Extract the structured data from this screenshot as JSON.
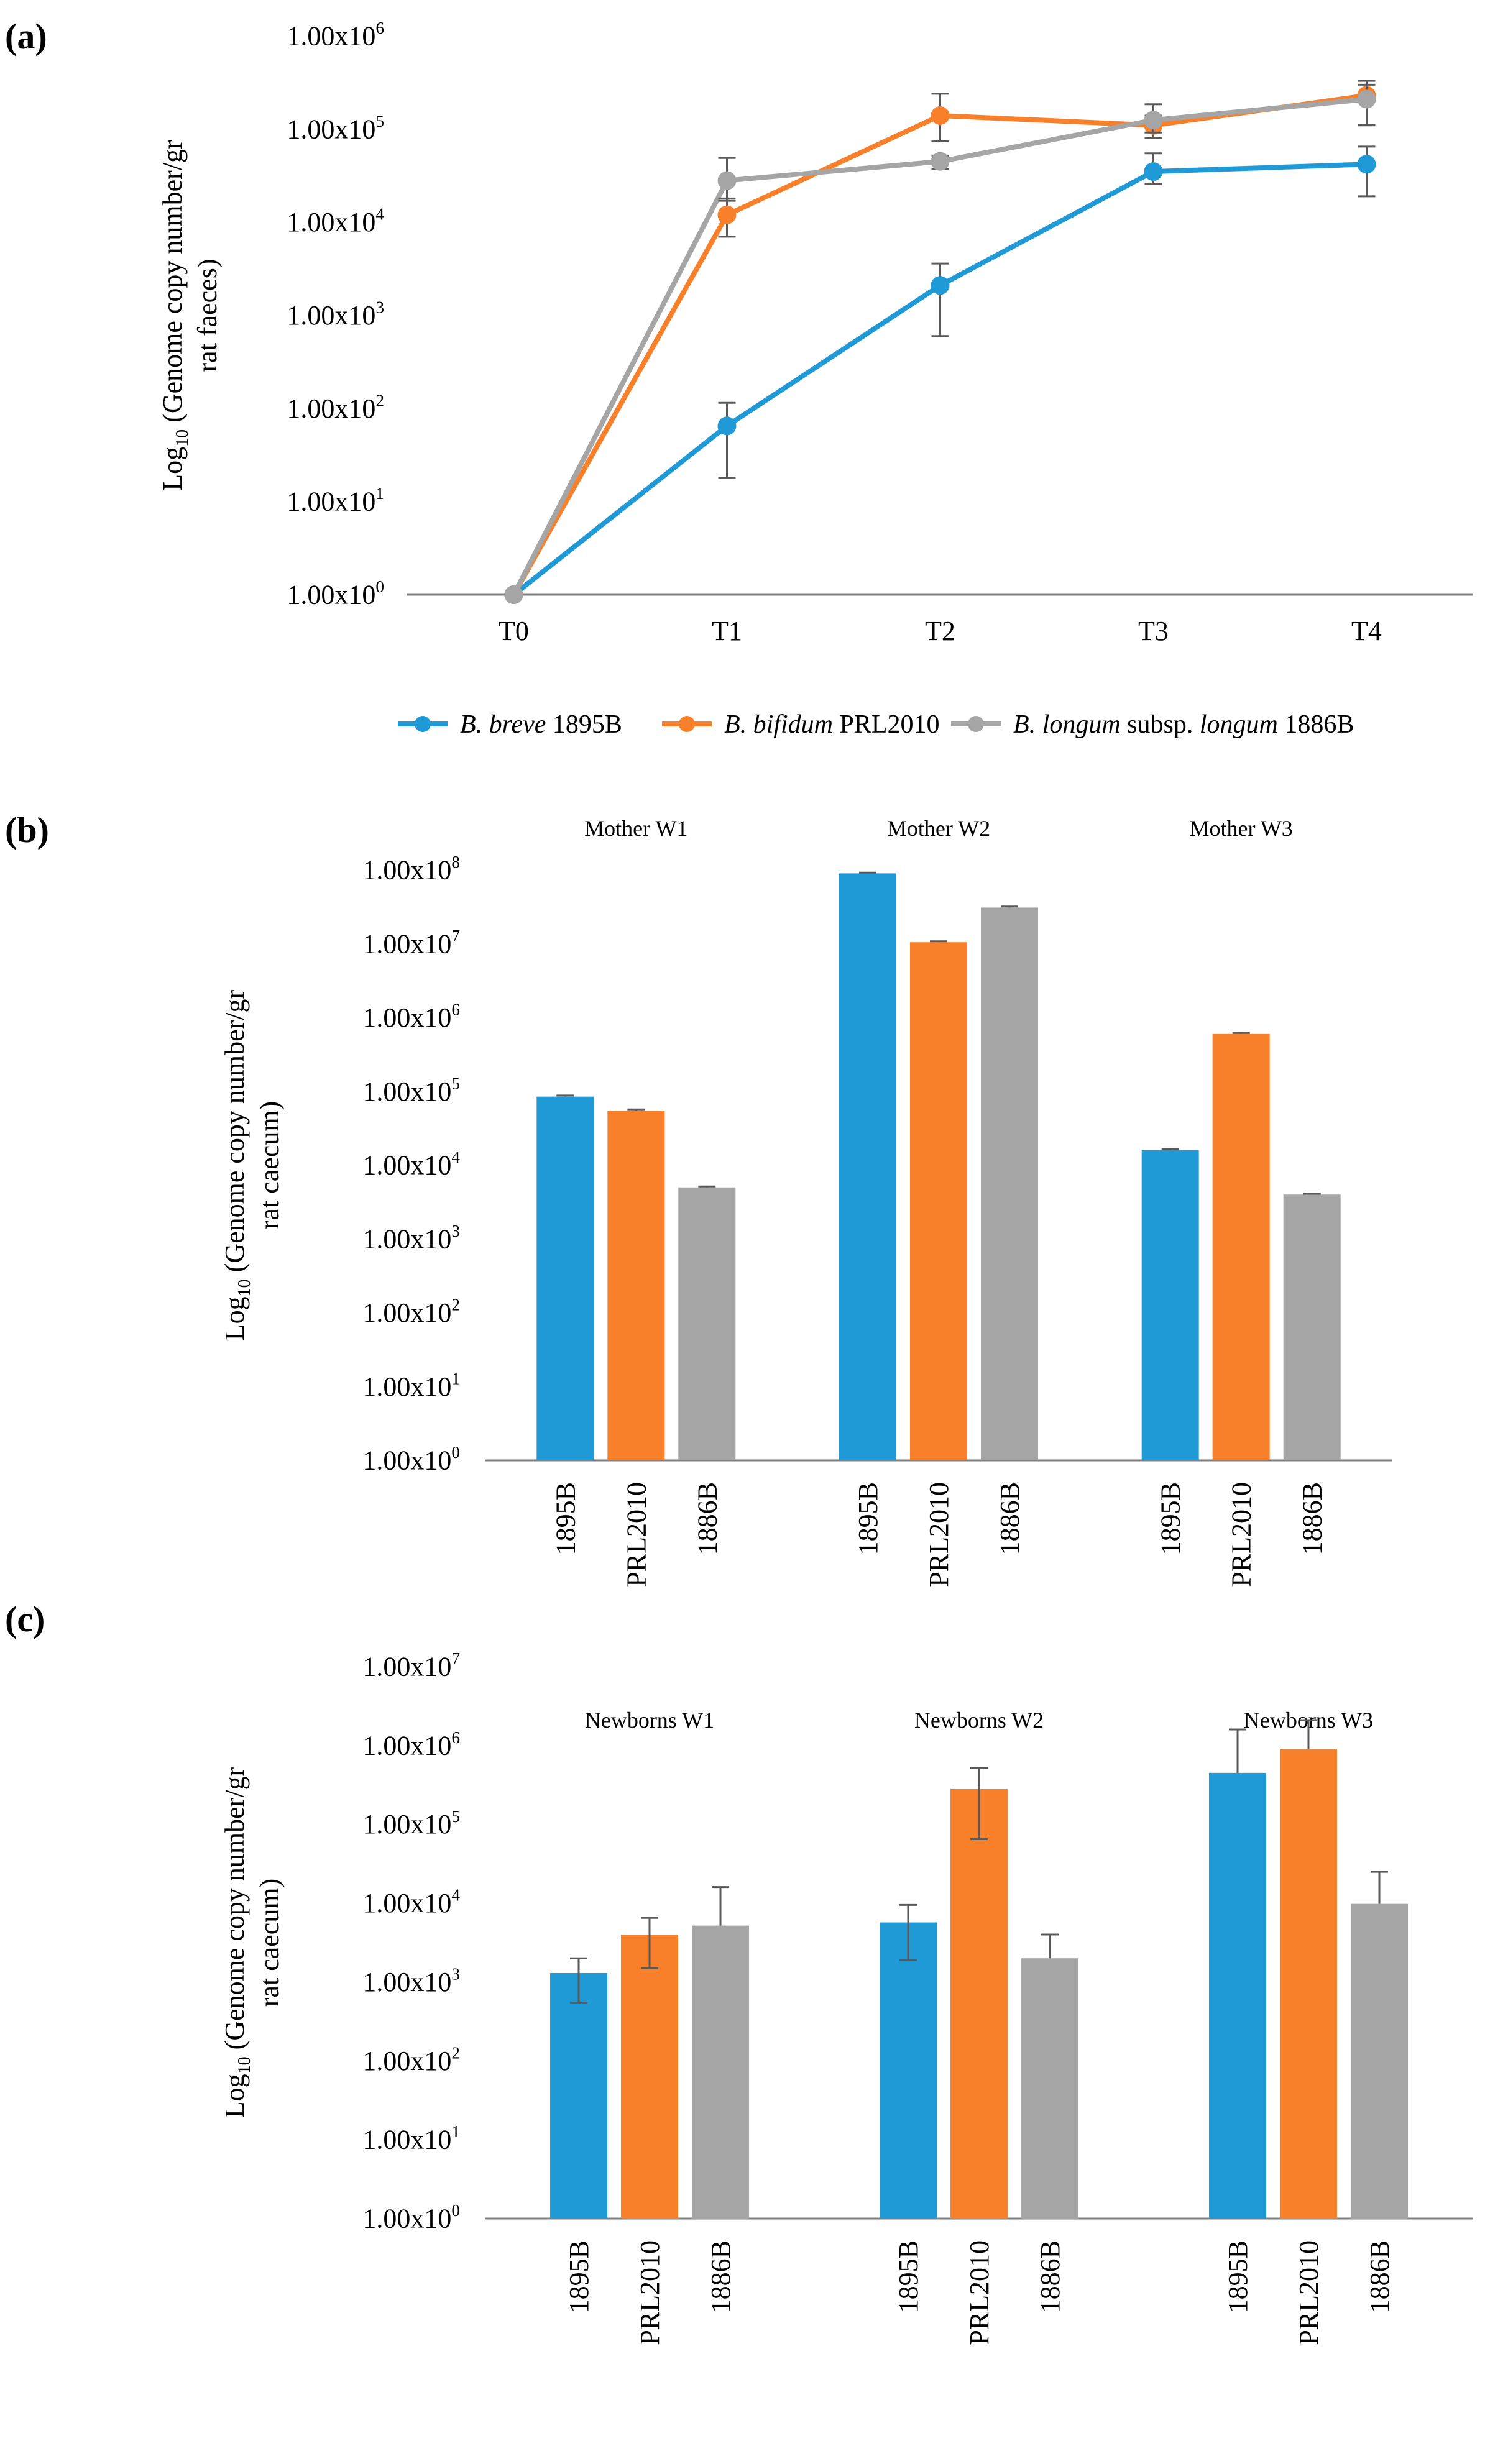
{
  "colors": {
    "series_1895B": "#1f9ad6",
    "series_PRL2010": "#f9802a",
    "series_1886B": "#a5a5a5",
    "axis": "#808080",
    "error_bar": "#595959",
    "text": "#000000"
  },
  "chart_data": [
    {
      "panel": "(a)",
      "type": "line",
      "y_scale": "log10",
      "ylabel_line1_prefix": "Log",
      "ylabel_line1_sub": "10",
      "ylabel_line1_suffix": " (Genome copy number/gr",
      "ylabel_line2": "rat faeces)",
      "ylim": [
        1,
        1000000
      ],
      "ytick_labels": [
        {
          "base": "1.00x10",
          "exp": "0"
        },
        {
          "base": "1.00x10",
          "exp": "1"
        },
        {
          "base": "1.00x10",
          "exp": "2"
        },
        {
          "base": "1.00x10",
          "exp": "3"
        },
        {
          "base": "1.00x10",
          "exp": "4"
        },
        {
          "base": "1.00x10",
          "exp": "5"
        },
        {
          "base": "1.00x10",
          "exp": "6"
        }
      ],
      "categories": [
        "T0",
        "T1",
        "T2",
        "T3",
        "T4"
      ],
      "series": [
        {
          "key": "1895B",
          "legend_italic": "B. breve",
          "legend_rest": " 1895B",
          "values": [
            1,
            65,
            2100,
            35000,
            42000
          ],
          "err_low": [
            1,
            18,
            600,
            26000,
            19000
          ],
          "err_high": [
            1,
            115,
            3600,
            55000,
            65000
          ]
        },
        {
          "key": "PRL2010",
          "legend_italic": "B. bifidum",
          "legend_rest": " PRL2010",
          "values": [
            1,
            12000,
            140000,
            110000,
            230000
          ],
          "err_low": [
            1,
            7000,
            75000,
            80000,
            110000
          ],
          "err_high": [
            1,
            18000,
            240000,
            140000,
            330000
          ]
        },
        {
          "key": "1886B",
          "legend_italic_1": "B. longum",
          "legend_mid": " subsp. ",
          "legend_italic_2": "longum",
          "legend_rest": " 1886B",
          "values": [
            1,
            28000,
            45000,
            125000,
            210000
          ],
          "err_low": [
            1,
            17000,
            37000,
            92000,
            110000
          ],
          "err_high": [
            1,
            49000,
            52000,
            185000,
            300000
          ]
        }
      ]
    },
    {
      "panel": "(b)",
      "type": "bar",
      "y_scale": "log10",
      "ylabel_line1_prefix": "Log",
      "ylabel_line1_sub": "10",
      "ylabel_line1_suffix": " (Genome copy number/gr",
      "ylabel_line2": "rat caecum)",
      "ylim": [
        1,
        100000000
      ],
      "ytick_labels": [
        {
          "base": "1.00x10",
          "exp": "0"
        },
        {
          "base": "1.00x10",
          "exp": "1"
        },
        {
          "base": "1.00x10",
          "exp": "2"
        },
        {
          "base": "1.00x10",
          "exp": "3"
        },
        {
          "base": "1.00x10",
          "exp": "4"
        },
        {
          "base": "1.00x10",
          "exp": "5"
        },
        {
          "base": "1.00x10",
          "exp": "6"
        },
        {
          "base": "1.00x10",
          "exp": "7"
        },
        {
          "base": "1.00x10",
          "exp": "8"
        }
      ],
      "groups": [
        {
          "label": "Mother W1",
          "bars": [
            {
              "key": "1895B",
              "value": 85000,
              "err_high": 88000
            },
            {
              "key": "PRL2010",
              "value": 55000,
              "err_high": 57000
            },
            {
              "key": "1886B",
              "value": 5000,
              "err_high": 5150
            }
          ]
        },
        {
          "label": "Mother W2",
          "bars": [
            {
              "key": "1895B",
              "value": 90000000,
              "err_high": 92000000
            },
            {
              "key": "PRL2010",
              "value": 10500000,
              "err_high": 10800000
            },
            {
              "key": "1886B",
              "value": 31000000,
              "err_high": 32000000
            }
          ]
        },
        {
          "label": "Mother W3",
          "bars": [
            {
              "key": "1895B",
              "value": 16000,
              "err_high": 16500
            },
            {
              "key": "PRL2010",
              "value": 600000,
              "err_high": 618000
            },
            {
              "key": "1886B",
              "value": 4000,
              "err_high": 4100
            }
          ]
        }
      ]
    },
    {
      "panel": "(c)",
      "type": "bar",
      "y_scale": "log10",
      "ylabel_line1_prefix": "Log",
      "ylabel_line1_sub": "10",
      "ylabel_line1_suffix": " (Genome copy number/gr",
      "ylabel_line2": "rat caecum)",
      "ylim": [
        1,
        10000000
      ],
      "ytick_labels": [
        {
          "base": "1.00x10",
          "exp": "0"
        },
        {
          "base": "1.00x10",
          "exp": "1"
        },
        {
          "base": "1.00x10",
          "exp": "2"
        },
        {
          "base": "1.00x10",
          "exp": "3"
        },
        {
          "base": "1.00x10",
          "exp": "4"
        },
        {
          "base": "1.00x10",
          "exp": "5"
        },
        {
          "base": "1.00x10",
          "exp": "6"
        },
        {
          "base": "1.00x10",
          "exp": "7"
        }
      ],
      "groups": [
        {
          "label": "Newborns W1",
          "bars": [
            {
              "key": "1895B",
              "value": 1300,
              "err_low": 550,
              "err_high": 2000
            },
            {
              "key": "PRL2010",
              "value": 4000,
              "err_low": 1500,
              "err_high": 6500
            },
            {
              "key": "1886B",
              "value": 5200,
              "err_high": 16000
            }
          ]
        },
        {
          "label": "Newborns W2",
          "bars": [
            {
              "key": "1895B",
              "value": 5700,
              "err_low": 1900,
              "err_high": 9500
            },
            {
              "key": "PRL2010",
              "value": 280000,
              "err_low": 65000,
              "err_high": 520000
            },
            {
              "key": "1886B",
              "value": 2000,
              "err_high": 4000
            }
          ]
        },
        {
          "label": "Newborns W3",
          "bars": [
            {
              "key": "1895B",
              "value": 450000,
              "err_high": 1600000
            },
            {
              "key": "PRL2010",
              "value": 900000,
              "err_high": 2100000
            },
            {
              "key": "1886B",
              "value": 9800,
              "err_high": 25000
            }
          ]
        }
      ]
    }
  ],
  "bar_category_labels": [
    "1895B",
    "PRL2010",
    "1886B"
  ]
}
